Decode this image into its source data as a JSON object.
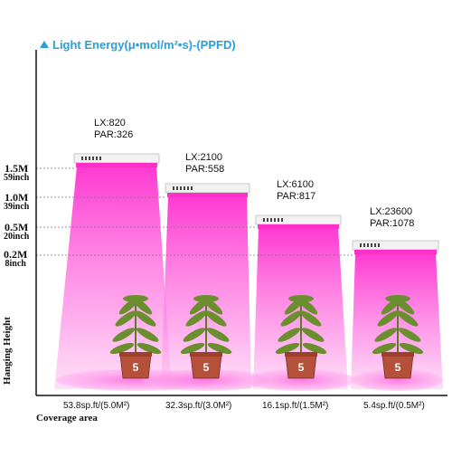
{
  "title": "Light Energy(μ•mol/m²•s)-(PPFD)",
  "yaxis_title": "Hanging Height",
  "xaxis_title": "Coverage area",
  "heights": [
    {
      "m": "1.5M",
      "inch": "59inch"
    },
    {
      "m": "1.0M",
      "inch": "39inch"
    },
    {
      "m": "0.5M",
      "inch": "20inch"
    },
    {
      "m": "0.2M",
      "inch": "8inch"
    }
  ],
  "readings": [
    {
      "lx": "LX:820",
      "par": "PAR:326",
      "coverage": "53.8sp.ft/(5.0M²)",
      "pot": "5"
    },
    {
      "lx": "LX:2100",
      "par": "PAR:558",
      "coverage": "32.3sp.ft/(3.0M²)",
      "pot": "5"
    },
    {
      "lx": "LX:6100",
      "par": "PAR:817",
      "coverage": "16.1sp.ft/(1.5M²)",
      "pot": "5"
    },
    {
      "lx": "LX:23600",
      "par": "PAR:1078",
      "coverage": "5.4sp.ft/(0.5M²)",
      "pot": "5"
    }
  ],
  "colors": {
    "accent": "#2a9fd6",
    "beam": "#ff4fd8",
    "lamp": "#f2f2f2",
    "pot": "#b5503a"
  }
}
